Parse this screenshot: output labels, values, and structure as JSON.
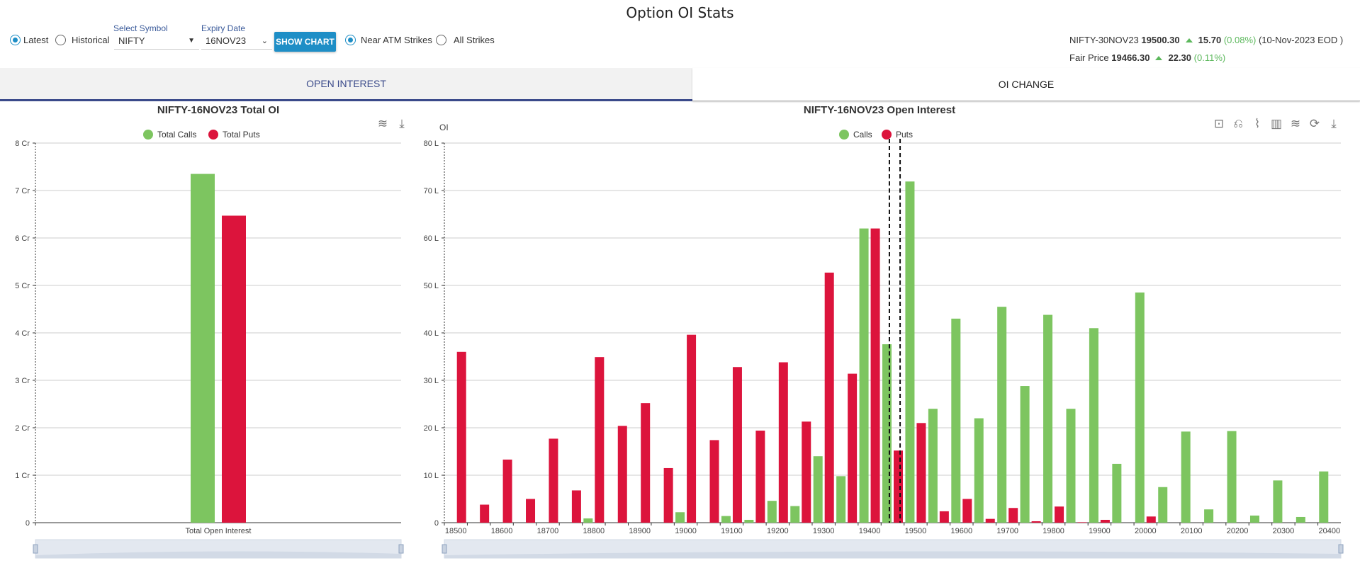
{
  "page_title": "Option OI Stats",
  "controls": {
    "mode_options": [
      {
        "label": "Latest",
        "selected": true
      },
      {
        "label": "Historical",
        "selected": false
      }
    ],
    "symbol_label": "Select Symbol",
    "symbol_value": "NIFTY",
    "expiry_label": "Expiry Date",
    "expiry_value": "16NOV23",
    "show_chart": "SHOW CHART",
    "strike_options": [
      {
        "label": "Near ATM Strikes",
        "selected": true
      },
      {
        "label": "All Strikes",
        "selected": false
      }
    ]
  },
  "quote": {
    "instrument": "NIFTY-30NOV23",
    "price": "19500.30",
    "change": "15.70",
    "change_pct": "(0.08%)",
    "asof": "(10-Nov-2023 EOD )",
    "fair_label": "Fair Price",
    "fair_price": "19466.30",
    "fair_change": "22.30",
    "fair_change_pct": "(0.11%)",
    "up_color": "#5cb85c"
  },
  "tabs": [
    {
      "label": "OPEN INTEREST",
      "active": true
    },
    {
      "label": "OI CHANGE",
      "active": false
    }
  ],
  "colors": {
    "calls": "#7dc560",
    "puts": "#dc143c",
    "accent": "#1e8ec6"
  },
  "chart_data": [
    {
      "type": "bar",
      "title": "NIFTY-16NOV23 Total OI",
      "categories": [
        "Total Open Interest"
      ],
      "series": [
        {
          "name": "Total Calls",
          "values": [
            7.35
          ]
        },
        {
          "name": "Total Puts",
          "values": [
            6.47
          ]
        }
      ],
      "unit": "Cr",
      "ylim": [
        0,
        8
      ],
      "yticks": [
        "0",
        "1 Cr",
        "2 Cr",
        "3 Cr",
        "4 Cr",
        "5 Cr",
        "6 Cr",
        "7 Cr",
        "8 Cr"
      ],
      "grid": true,
      "legend": "top",
      "toolbox": [
        "stack-icon",
        "download-icon"
      ]
    },
    {
      "type": "bar",
      "title": "NIFTY-16NOV23 Open Interest",
      "ylabel": "OI",
      "unit": "L",
      "ylim": [
        0,
        80
      ],
      "yticks": [
        "0",
        "10 L",
        "20 L",
        "30 L",
        "40 L",
        "50 L",
        "60 L",
        "70 L",
        "80 L"
      ],
      "categories": [
        18500,
        18550,
        18600,
        18650,
        18700,
        18750,
        18800,
        18850,
        18900,
        18950,
        19000,
        19050,
        19100,
        19150,
        19200,
        19250,
        19300,
        19350,
        19400,
        19450,
        19500,
        19550,
        19600,
        19650,
        19700,
        19750,
        19800,
        19850,
        19900,
        19950,
        20000,
        20050,
        20100,
        20150,
        20200,
        20250,
        20300,
        20350,
        20400
      ],
      "series": [
        {
          "name": "Calls",
          "values": [
            0,
            0,
            0,
            0,
            0,
            0,
            0.9,
            0,
            0,
            0,
            2.2,
            0,
            1.4,
            0.6,
            4.6,
            3.5,
            14,
            9.8,
            62,
            37.6,
            71.9,
            24,
            43,
            22,
            45.5,
            28.8,
            43.8,
            24,
            41,
            12.4,
            48.5,
            7.5,
            19.2,
            2.8,
            19.3,
            1.5,
            8.9,
            1.2,
            10.8
          ]
        },
        {
          "name": "Puts",
          "values": [
            36,
            3.8,
            13.3,
            5,
            17.7,
            6.8,
            34.9,
            20.4,
            25.2,
            11.5,
            39.6,
            17.4,
            32.8,
            19.4,
            33.8,
            21.3,
            52.7,
            31.4,
            62,
            15.2,
            21,
            2.4,
            5,
            0.8,
            3.1,
            0.3,
            3.4,
            0.1,
            0.6,
            0,
            1.3,
            0,
            0,
            0,
            0,
            0,
            0,
            0,
            0
          ]
        }
      ],
      "marker_lines": [
        19443,
        19466.3
      ],
      "grid": true,
      "legend": "top",
      "toolbox": [
        "zoom-icon",
        "zoom-reset-icon",
        "line-icon",
        "bar-icon",
        "stack-icon",
        "restore-icon",
        "download-icon"
      ]
    }
  ]
}
